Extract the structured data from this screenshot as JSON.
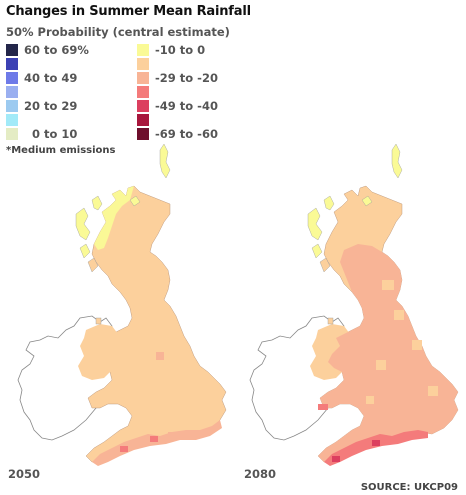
{
  "title": "Changes in Summer Mean Rainfall",
  "subtitle": "50% Probability (central estimate)",
  "legend": {
    "left": [
      {
        "label": "60 to 69%",
        "color": "#23264a"
      },
      {
        "label": "",
        "color": "#3c41b4"
      },
      {
        "label": "40 to 49",
        "color": "#6e7ae8"
      },
      {
        "label": "",
        "color": "#9aaff0"
      },
      {
        "label": "20 to 29",
        "color": "#9ccaf0"
      },
      {
        "label": "",
        "color": "#a2eaf8"
      },
      {
        "label": "0 to 10",
        "color": "#e4ecc4"
      }
    ],
    "right": [
      {
        "label": "-10 to 0",
        "color": "#fafa96"
      },
      {
        "label": "",
        "color": "#fcd09c"
      },
      {
        "label": "-29 to -20",
        "color": "#f8b496"
      },
      {
        "label": "",
        "color": "#f47b7b"
      },
      {
        "label": "-49 to -40",
        "color": "#dc3f5f"
      },
      {
        "label": "",
        "color": "#a8163c"
      },
      {
        "label": "-69 to -60",
        "color": "#6e0f2c"
      }
    ]
  },
  "note": "*Medium emissions",
  "maps": [
    {
      "year": "2050"
    },
    {
      "year": "2080"
    }
  ],
  "source": "SOURCE: UKCP09",
  "colors": {
    "land_base": "#fcd09c",
    "coast_yellow": "#fafa96",
    "pink": "#f8b496",
    "red": "#f47b7b",
    "ireland_fill": "#ffffff",
    "ireland_outline": "#888888"
  }
}
